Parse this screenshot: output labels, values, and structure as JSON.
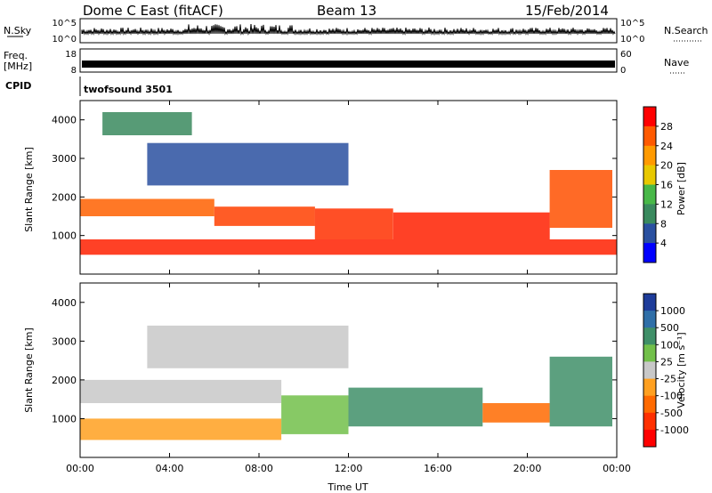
{
  "header": {
    "station": "Dome C East (fitACF)",
    "beam": "Beam 13",
    "date": "15/Feb/2014"
  },
  "strips": {
    "nsky": {
      "label": "N.Sky",
      "tick_top": "10^5",
      "tick_bottom": "10^0"
    },
    "nsearch": {
      "label": "N.Search",
      "tick_top": "10^5",
      "tick_bottom": "10^0"
    },
    "freq": {
      "label_1": "Freq.",
      "label_2": "[MHz]",
      "tick_top": "18",
      "tick_bottom": "8"
    },
    "nave": {
      "label": "Nave",
      "tick_top": "60",
      "tick_bottom": "0"
    },
    "cpid": {
      "label": "CPID",
      "program": "twofsound 3501"
    }
  },
  "chart_data": [
    {
      "type": "heatmap",
      "panel": "power",
      "xlabel": "",
      "ylabel": "Slant Range [km]",
      "xlim": [
        0,
        24
      ],
      "ylim": [
        0,
        4500
      ],
      "yticks": [
        "1000",
        "2000",
        "3000",
        "4000"
      ],
      "colorbar": {
        "label": "Power [dB]",
        "ticks": [
          "28",
          "24",
          "20",
          "16",
          "12",
          "8",
          "4"
        ],
        "colors": [
          "#ff0000",
          "#ff5a00",
          "#ff9a00",
          "#e8c800",
          "#48b848",
          "#3a8a5e",
          "#2a50a0",
          "#0000ff"
        ]
      },
      "bands": [
        {
          "t0": 0.0,
          "t1": 24.0,
          "r0": 500,
          "r1": 900,
          "c": "#ff2000"
        },
        {
          "t0": 0.0,
          "t1": 6.0,
          "r0": 1500,
          "r1": 1950,
          "c": "#ff6000"
        },
        {
          "t0": 6.0,
          "t1": 10.5,
          "r0": 1250,
          "r1": 1750,
          "c": "#ff4000"
        },
        {
          "t0": 10.5,
          "t1": 14.0,
          "r0": 900,
          "r1": 1700,
          "c": "#ff3000"
        },
        {
          "t0": 14.0,
          "t1": 21.0,
          "r0": 900,
          "r1": 1600,
          "c": "#ff2000"
        },
        {
          "t0": 21.0,
          "t1": 23.8,
          "r0": 1200,
          "r1": 2700,
          "c": "#ff5000"
        },
        {
          "t0": 3.0,
          "t1": 12.0,
          "r0": 2300,
          "r1": 3400,
          "c": "#2a50a0"
        },
        {
          "t0": 1.0,
          "t1": 5.0,
          "r0": 3600,
          "r1": 4200,
          "c": "#3a8a5e"
        }
      ]
    },
    {
      "type": "heatmap",
      "panel": "velocity",
      "xlabel": "Time UT",
      "ylabel": "Slant Range [km]",
      "xlim": [
        0,
        24
      ],
      "ylim": [
        0,
        4500
      ],
      "xticks": [
        "00:00",
        "04:00",
        "08:00",
        "12:00",
        "16:00",
        "20:00",
        "00:00"
      ],
      "yticks": [
        "1000",
        "2000",
        "3000",
        "4000"
      ],
      "colorbar": {
        "label": "Velocity [m s⁻¹]",
        "ticks": [
          "1000",
          "500",
          "100",
          "25",
          "-25",
          "-100",
          "-500",
          "-1000"
        ],
        "colors": [
          "#1e3c9a",
          "#2f6fa8",
          "#3f8f68",
          "#72c04a",
          "#c8c8c8",
          "#ffa020",
          "#ff6a00",
          "#ff3000",
          "#ff0000"
        ]
      },
      "bands": [
        {
          "t0": 0.0,
          "t1": 9.0,
          "r0": 450,
          "r1": 1000,
          "c": "#ffa020"
        },
        {
          "t0": 0.0,
          "t1": 9.0,
          "r0": 1400,
          "r1": 2000,
          "c": "#c8c8c8"
        },
        {
          "t0": 9.0,
          "t1": 12.0,
          "r0": 600,
          "r1": 1600,
          "c": "#72c04a"
        },
        {
          "t0": 12.0,
          "t1": 18.0,
          "r0": 800,
          "r1": 1800,
          "c": "#3f8f68"
        },
        {
          "t0": 18.0,
          "t1": 21.0,
          "r0": 900,
          "r1": 1400,
          "c": "#ff6a00"
        },
        {
          "t0": 21.0,
          "t1": 23.8,
          "r0": 800,
          "r1": 2600,
          "c": "#3f8f68"
        },
        {
          "t0": 3.0,
          "t1": 12.0,
          "r0": 2300,
          "r1": 3400,
          "c": "#c8c8c8"
        }
      ]
    }
  ]
}
